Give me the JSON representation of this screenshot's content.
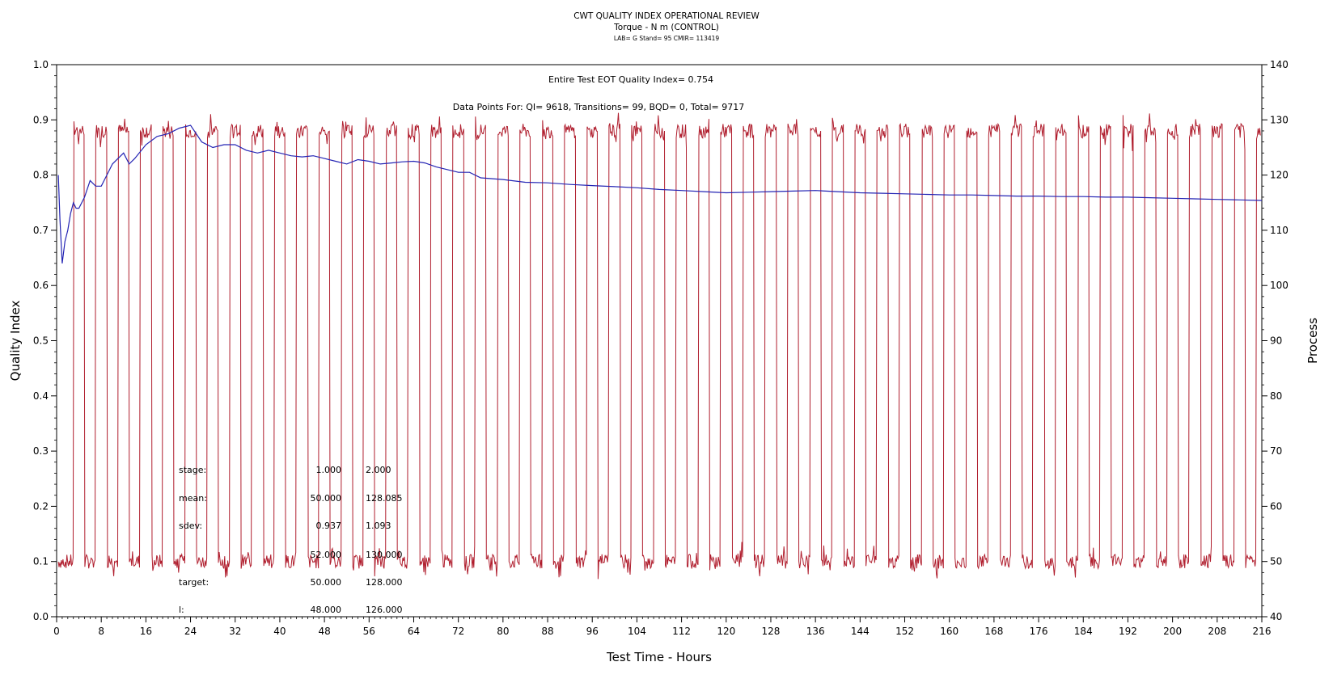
{
  "header": {
    "title": "CWT QUALITY INDEX OPERATIONAL REVIEW",
    "subtitle": "Torque - N m (CONTROL)",
    "lab_line": "LAB= G Stand= 95 CMIR= 113419"
  },
  "annotations": {
    "qi_line": "Entire Test EOT Quality Index=   0.754",
    "points_line": "Data Points For: QI=  9618, Transitions=    99, BQD=     0, Total=  9717"
  },
  "stats_table": {
    "labels": [
      "stage:",
      "mean:",
      "sdev:",
      "",
      "target:",
      "l:"
    ],
    "col1": [
      "1.000",
      "50.000",
      "0.937",
      "52.000",
      "50.000",
      "48.000"
    ],
    "col2": [
      "2.000",
      "128.085",
      "1.093",
      "130.000",
      "128.000",
      "126.000"
    ]
  },
  "chart_data": {
    "type": "line",
    "title": "CWT QUALITY INDEX OPERATIONAL REVIEW",
    "xlabel": "Test Time - Hours",
    "ylabel": "Quality Index",
    "y2label": "Process",
    "xlim": [
      0,
      216
    ],
    "ylim": [
      0.0,
      1.0
    ],
    "y2lim": [
      40,
      140
    ],
    "x_ticks": [
      0,
      8,
      16,
      24,
      32,
      40,
      48,
      56,
      64,
      72,
      80,
      88,
      96,
      104,
      112,
      120,
      128,
      136,
      144,
      152,
      160,
      168,
      176,
      184,
      192,
      200,
      208,
      216
    ],
    "y_ticks": [
      "0.0",
      "0.1",
      "0.2",
      "0.3",
      "0.4",
      "0.5",
      "0.6",
      "0.7",
      "0.8",
      "0.9",
      "1.0"
    ],
    "y2_ticks": [
      "40",
      "50",
      "60",
      "70",
      "80",
      "90",
      "100",
      "110",
      "120",
      "130",
      "140"
    ],
    "grid": false,
    "series": [
      {
        "role": "quality_index",
        "axis": "left",
        "color": "#2424b4",
        "x": [
          0.3,
          0.6,
          1,
          1.5,
          2,
          2.5,
          3,
          3.5,
          4,
          5,
          6,
          7,
          8,
          9,
          10,
          11,
          12,
          13,
          14,
          16,
          18,
          20,
          22,
          24,
          26,
          28,
          30,
          32,
          34,
          36,
          38,
          40,
          42,
          44,
          46,
          48,
          50,
          52,
          54,
          56,
          58,
          60,
          62,
          64,
          66,
          68,
          70,
          72,
          74,
          76,
          80,
          84,
          88,
          92,
          96,
          100,
          104,
          108,
          112,
          116,
          120,
          124,
          128,
          132,
          136,
          140,
          144,
          148,
          152,
          156,
          160,
          164,
          168,
          172,
          176,
          180,
          184,
          188,
          192,
          196,
          200,
          204,
          208,
          212,
          216
        ],
        "y": [
          0.8,
          0.72,
          0.64,
          0.68,
          0.7,
          0.73,
          0.75,
          0.74,
          0.74,
          0.76,
          0.79,
          0.78,
          0.78,
          0.8,
          0.82,
          0.83,
          0.84,
          0.82,
          0.83,
          0.855,
          0.87,
          0.875,
          0.885,
          0.89,
          0.86,
          0.85,
          0.855,
          0.855,
          0.845,
          0.84,
          0.845,
          0.84,
          0.835,
          0.833,
          0.835,
          0.83,
          0.825,
          0.82,
          0.828,
          0.825,
          0.82,
          0.822,
          0.824,
          0.825,
          0.822,
          0.815,
          0.81,
          0.805,
          0.805,
          0.795,
          0.792,
          0.787,
          0.786,
          0.783,
          0.781,
          0.779,
          0.777,
          0.774,
          0.772,
          0.77,
          0.768,
          0.769,
          0.77,
          0.771,
          0.772,
          0.77,
          0.768,
          0.767,
          0.766,
          0.765,
          0.764,
          0.764,
          0.763,
          0.762,
          0.762,
          0.761,
          0.761,
          0.76,
          0.76,
          0.759,
          0.758,
          0.757,
          0.756,
          0.755,
          0.754
        ]
      },
      {
        "role": "process",
        "axis": "right",
        "color": "#b01e2e",
        "shape": "square wave alternating between stage targets",
        "low_level": 50,
        "high_level": 128,
        "first_rise_x": 3,
        "cycle_period_hours": 4,
        "high_duration_hours": 2
      }
    ]
  }
}
